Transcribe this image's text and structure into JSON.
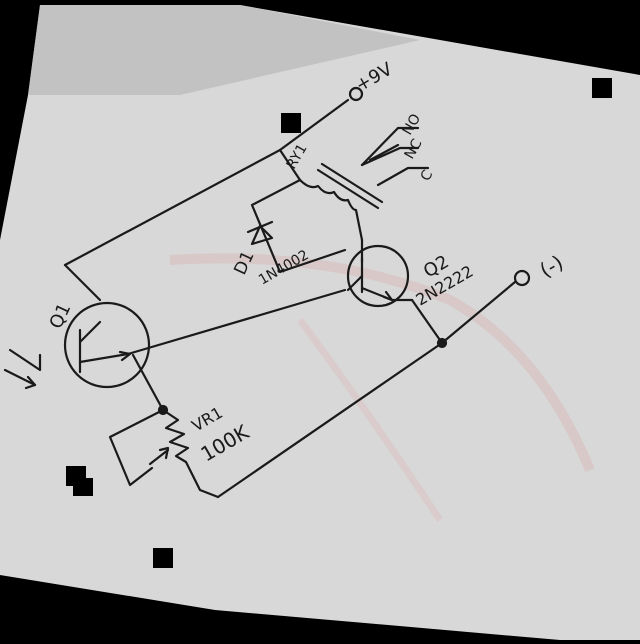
{
  "photo": {
    "paper_color": "#d8d8d8",
    "background_color": "#000000",
    "ink_color": "#1a1a1a"
  },
  "labels": {
    "supply": "+9V",
    "ground": "(-)",
    "q1": "Q1",
    "q2": "Q2",
    "q2_part": "2N2222",
    "d1": "D1",
    "d1_part": "1N4002",
    "vr1": "VR1",
    "vr1_value": "100K",
    "relay": "RY1",
    "relay_no": "NO",
    "relay_nc": "NC",
    "relay_c": "C"
  }
}
